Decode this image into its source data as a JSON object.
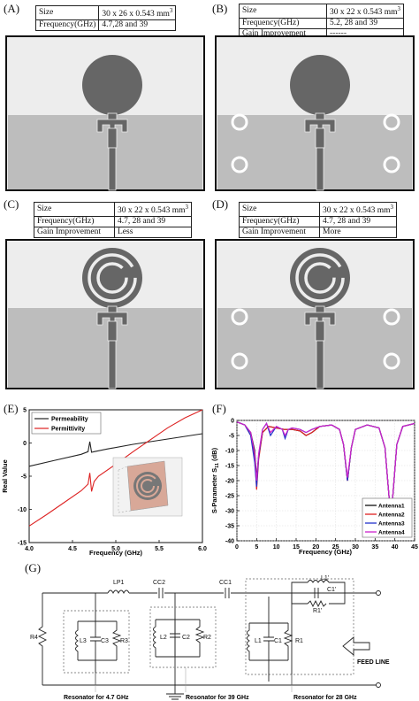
{
  "panels": {
    "A": {
      "label": "(A)",
      "rows": [
        [
          "Size",
          "30 x 26 x 0.543 mm",
          "3"
        ],
        [
          "Frequency(GHz)",
          "4.7,28 and 39",
          ""
        ]
      ]
    },
    "B": {
      "label": "(B)",
      "rows": [
        [
          "Size",
          "30 x 22 x 0.543 mm",
          "3"
        ],
        [
          "Frequency(GHz)",
          "5.2, 28 and 39",
          ""
        ],
        [
          "Gain Improvement",
          "------",
          ""
        ]
      ]
    },
    "C": {
      "label": "(C)",
      "rows": [
        [
          "Size",
          "30 x 22 x 0.543 mm",
          "3"
        ],
        [
          "Frequency(GHz)",
          "4.7, 28 and 39",
          ""
        ],
        [
          "Gain Improvement",
          "Less",
          ""
        ]
      ]
    },
    "D": {
      "label": "(D)",
      "rows": [
        [
          "Size",
          "30 x 22 x 0.543 mm",
          "3"
        ],
        [
          "Frequency(GHz)",
          "4.7, 28 and 39",
          ""
        ],
        [
          "Gain Improvement",
          "More",
          ""
        ]
      ]
    },
    "E": {
      "label": "(E)"
    },
    "F": {
      "label": "(F)"
    },
    "G": {
      "label": "(G)"
    }
  },
  "chart_data": [
    {
      "type": "line",
      "panel": "E",
      "xlabel": "Frequency (GHz)",
      "ylabel": "Real Value",
      "xlim": [
        4.0,
        6.0
      ],
      "ylim": [
        -15,
        5
      ],
      "xticks": [
        "4.0",
        "4.5",
        "5.0",
        "5.5",
        "6.0"
      ],
      "yticks": [
        "5",
        "0",
        "-5",
        "-10",
        "-15"
      ],
      "xtick_values": [
        4.0,
        4.5,
        5.0,
        5.5,
        6.0
      ],
      "ytick_values": [
        5,
        0,
        -5,
        -10,
        -15
      ],
      "legend": "top-left",
      "series": [
        {
          "name": "Permeability",
          "color": "#222222",
          "x": [
            4.0,
            4.3,
            4.6,
            4.68,
            4.7,
            4.72,
            4.75,
            4.9,
            5.2,
            5.6,
            6.0
          ],
          "y": [
            -3.5,
            -2.6,
            -1.7,
            -1.3,
            0.2,
            -1.4,
            -1.3,
            -0.9,
            -0.2,
            0.6,
            1.4
          ]
        },
        {
          "name": "Permittivity",
          "color": "#dd2222",
          "x": [
            4.0,
            4.2,
            4.4,
            4.6,
            4.68,
            4.7,
            4.72,
            4.75,
            4.8,
            5.0,
            5.2,
            5.4,
            5.6,
            5.8,
            6.0
          ],
          "y": [
            -12.5,
            -10.8,
            -9.0,
            -7.2,
            -6.2,
            -4.5,
            -7.3,
            -5.8,
            -5.0,
            -3.2,
            -1.3,
            0.5,
            2.3,
            3.8,
            5.0
          ]
        }
      ]
    },
    {
      "type": "line",
      "panel": "F",
      "xlabel": "Frequency (GHz)",
      "ylabel": "S-Parameter S11 (dB)",
      "ylabel_main": "S-Parameter S",
      "ylabel_sub": "11",
      "ylabel_unit": " (dB)",
      "xlim": [
        0,
        45
      ],
      "ylim": [
        -40,
        0
      ],
      "xticks": [
        "0",
        "5",
        "10",
        "15",
        "20",
        "25",
        "30",
        "35",
        "40",
        "45"
      ],
      "yticks": [
        "0",
        "-5",
        "-10",
        "-15",
        "-20",
        "-25",
        "-30",
        "-35",
        "-40"
      ],
      "xtick_values": [
        0,
        5,
        10,
        15,
        20,
        25,
        30,
        35,
        40,
        45
      ],
      "ytick_values": [
        0,
        -5,
        -10,
        -15,
        -20,
        -25,
        -30,
        -35,
        -40
      ],
      "legend": "bottom-right",
      "series": [
        {
          "name": "Antenna1",
          "color": "#111111",
          "x": [
            0,
            2,
            3.5,
            4.5,
            5,
            5.5,
            6.5,
            8,
            10,
            12,
            14,
            16,
            17.5,
            19,
            21,
            24,
            26,
            27,
            28,
            29,
            30,
            33,
            36,
            37.5,
            38.5,
            39,
            39.5,
            40.5,
            42,
            45
          ],
          "y": [
            -0.5,
            -1.5,
            -4,
            -10,
            -19,
            -12,
            -4,
            -2,
            -2.5,
            -3,
            -3,
            -3.5,
            -5,
            -4,
            -2,
            -1.5,
            -3,
            -8,
            -20,
            -9,
            -3,
            -1.5,
            -2.5,
            -9,
            -25,
            -33,
            -25,
            -8,
            -2,
            -1
          ]
        },
        {
          "name": "Antenna2",
          "color": "#e02020",
          "x": [
            0,
            2,
            3.5,
            4.5,
            5,
            5.5,
            6.5,
            8,
            10,
            12,
            14,
            16,
            17.5,
            19,
            21,
            24,
            26,
            27,
            28,
            29,
            30,
            33,
            36,
            37.5,
            38.5,
            39,
            39.5,
            40.5,
            42,
            45
          ],
          "y": [
            -0.5,
            -1.5,
            -5,
            -12,
            -23,
            -13,
            -4,
            -2,
            -2.5,
            -3,
            -3,
            -3.5,
            -5,
            -4,
            -2,
            -1.5,
            -3,
            -8,
            -20,
            -9,
            -3,
            -1.5,
            -2.5,
            -9,
            -25,
            -35,
            -25,
            -8,
            -2,
            -1
          ]
        },
        {
          "name": "Antenna3",
          "color": "#2233cc",
          "x": [
            0,
            2,
            3.5,
            4.5,
            5,
            5.5,
            6.5,
            7.5,
            8.5,
            10,
            11.5,
            12.2,
            13,
            14,
            16,
            17.5,
            19,
            21,
            24,
            26,
            27,
            28,
            29,
            30,
            33,
            36,
            37.5,
            38.5,
            39,
            39.5,
            40.5,
            42,
            45
          ],
          "y": [
            -0.5,
            -1.5,
            -5,
            -14,
            -22,
            -12,
            -3,
            -1,
            -5,
            -2,
            -3,
            -6,
            -3,
            -2.5,
            -3,
            -4,
            -3,
            -2,
            -1.5,
            -3,
            -8,
            -20,
            -9,
            -3,
            -1.5,
            -2.5,
            -9,
            -25,
            -32,
            -25,
            -8,
            -2,
            -1
          ]
        },
        {
          "name": "Antenna4",
          "color": "#cc22cc",
          "x": [
            0,
            2,
            3.5,
            4.5,
            5,
            5.5,
            6.5,
            7.5,
            8.5,
            10,
            11.5,
            12.2,
            13,
            14,
            16,
            17.5,
            19,
            21,
            24,
            26,
            27,
            28,
            29,
            30,
            33,
            36,
            37.5,
            38.5,
            39,
            39.5,
            40.5,
            42,
            45
          ],
          "y": [
            -0.5,
            -1.5,
            -4,
            -11,
            -20,
            -11,
            -3,
            -1,
            -4,
            -2,
            -3,
            -5,
            -3,
            -2.5,
            -3,
            -4,
            -3,
            -2,
            -1.5,
            -3,
            -8,
            -19,
            -9,
            -3,
            -1.5,
            -2.5,
            -9,
            -25,
            -31,
            -25,
            -8,
            -2,
            -1
          ]
        }
      ]
    }
  ],
  "circuit": {
    "components": {
      "lp1": "LP1",
      "cc2": "CC2",
      "cc1": "CC1",
      "r4": "R4",
      "l3": "L3",
      "c3": "C3",
      "r3": "R3",
      "l2": "L2",
      "c2": "C2",
      "r2": "R2",
      "l1": "L1",
      "c1": "C1",
      "r1": "R1",
      "l1p": "L1'",
      "c1p": "C1'",
      "r1p": "R1'"
    },
    "feed_line": "FEED LINE",
    "resonators": [
      "Resonator for 4.7 GHz",
      "Resonator for 39 GHz",
      "Resonator for 28 GHz"
    ]
  }
}
